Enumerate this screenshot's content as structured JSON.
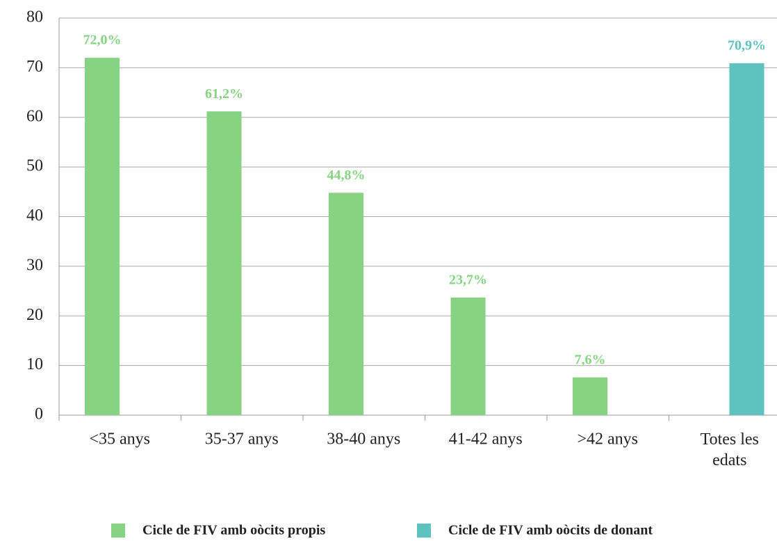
{
  "chart_data": {
    "type": "bar",
    "categories": [
      "<35 anys",
      "35-37 anys",
      "38-40 anys",
      "41-42 anys",
      ">42 anys",
      "Totes les edats"
    ],
    "series": [
      {
        "name": "Cicle de FIV amb oòcits propis",
        "color": "#88d383",
        "values": [
          72.0,
          61.2,
          44.8,
          23.7,
          7.6,
          null
        ],
        "value_labels": [
          "72,0%",
          "61,2%",
          "44,8%",
          "23,7%",
          "7,6%",
          null
        ]
      },
      {
        "name": "Cicle de FIV amb oòcits de donant",
        "color": "#5ec3be",
        "values": [
          null,
          null,
          null,
          null,
          null,
          70.9
        ],
        "value_labels": [
          null,
          null,
          null,
          null,
          null,
          "70,9%"
        ]
      }
    ],
    "ylim": [
      0,
      80
    ],
    "yticks": [
      0,
      10,
      20,
      30,
      40,
      50,
      60,
      70,
      80
    ],
    "grid": true,
    "legend": "bottom"
  }
}
